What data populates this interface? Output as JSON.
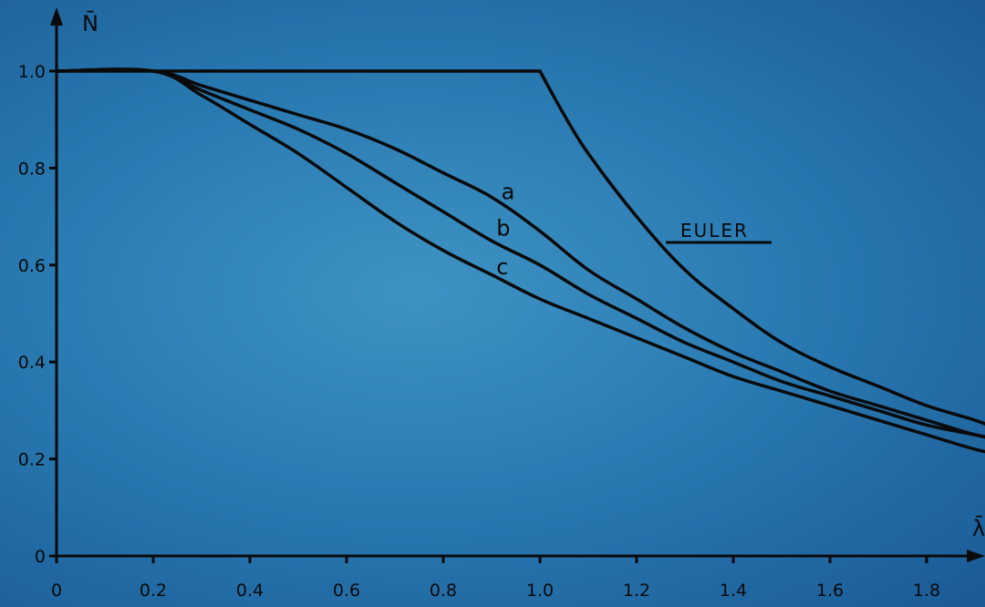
{
  "chart_data": {
    "type": "line",
    "title": "",
    "xlabel": "λ̄",
    "ylabel": "N̄",
    "xlim": [
      0,
      1.95
    ],
    "ylim": [
      0,
      1.0
    ],
    "x_ticks": [
      "0",
      "0.2",
      "0.4",
      "0.6",
      "0.8",
      "1.0",
      "1.2",
      "1.4",
      "1.6",
      "1.8"
    ],
    "y_ticks": [
      "0",
      "0.2",
      "0.4",
      "0.6",
      "0.8",
      "1.0"
    ],
    "grid": false,
    "colors": {
      "line": "#0a0a0a",
      "background": "#2a7bb3"
    },
    "series": [
      {
        "name": "EULER",
        "x": [
          0,
          0.2,
          1.0,
          1.05,
          1.1,
          1.2,
          1.3,
          1.4,
          1.5,
          1.6,
          1.7,
          1.8,
          1.9,
          1.95
        ],
        "y": [
          1.0,
          1.0,
          1.0,
          0.91,
          0.83,
          0.7,
          0.59,
          0.51,
          0.44,
          0.39,
          0.35,
          0.31,
          0.28,
          0.26
        ]
      },
      {
        "name": "a",
        "x": [
          0,
          0.2,
          0.3,
          0.4,
          0.5,
          0.6,
          0.7,
          0.8,
          0.9,
          1.0,
          1.1,
          1.2,
          1.3,
          1.4,
          1.5,
          1.6,
          1.7,
          1.8,
          1.9,
          1.95
        ],
        "y": [
          1.0,
          1.0,
          0.97,
          0.94,
          0.91,
          0.88,
          0.84,
          0.79,
          0.74,
          0.67,
          0.59,
          0.53,
          0.47,
          0.42,
          0.38,
          0.34,
          0.31,
          0.28,
          0.25,
          0.24
        ]
      },
      {
        "name": "b",
        "x": [
          0,
          0.2,
          0.3,
          0.4,
          0.5,
          0.6,
          0.7,
          0.8,
          0.9,
          1.0,
          1.1,
          1.2,
          1.3,
          1.4,
          1.5,
          1.6,
          1.7,
          1.8,
          1.9,
          1.95
        ],
        "y": [
          1.0,
          1.0,
          0.96,
          0.92,
          0.88,
          0.83,
          0.77,
          0.71,
          0.65,
          0.6,
          0.54,
          0.49,
          0.44,
          0.4,
          0.36,
          0.33,
          0.3,
          0.27,
          0.25,
          0.24
        ]
      },
      {
        "name": "c",
        "x": [
          0,
          0.2,
          0.3,
          0.4,
          0.5,
          0.6,
          0.7,
          0.8,
          0.9,
          1.0,
          1.1,
          1.2,
          1.3,
          1.4,
          1.5,
          1.6,
          1.7,
          1.8,
          1.9,
          1.95
        ],
        "y": [
          1.0,
          1.0,
          0.95,
          0.89,
          0.83,
          0.76,
          0.69,
          0.63,
          0.58,
          0.53,
          0.49,
          0.45,
          0.41,
          0.37,
          0.34,
          0.31,
          0.28,
          0.25,
          0.22,
          0.21
        ]
      }
    ]
  }
}
